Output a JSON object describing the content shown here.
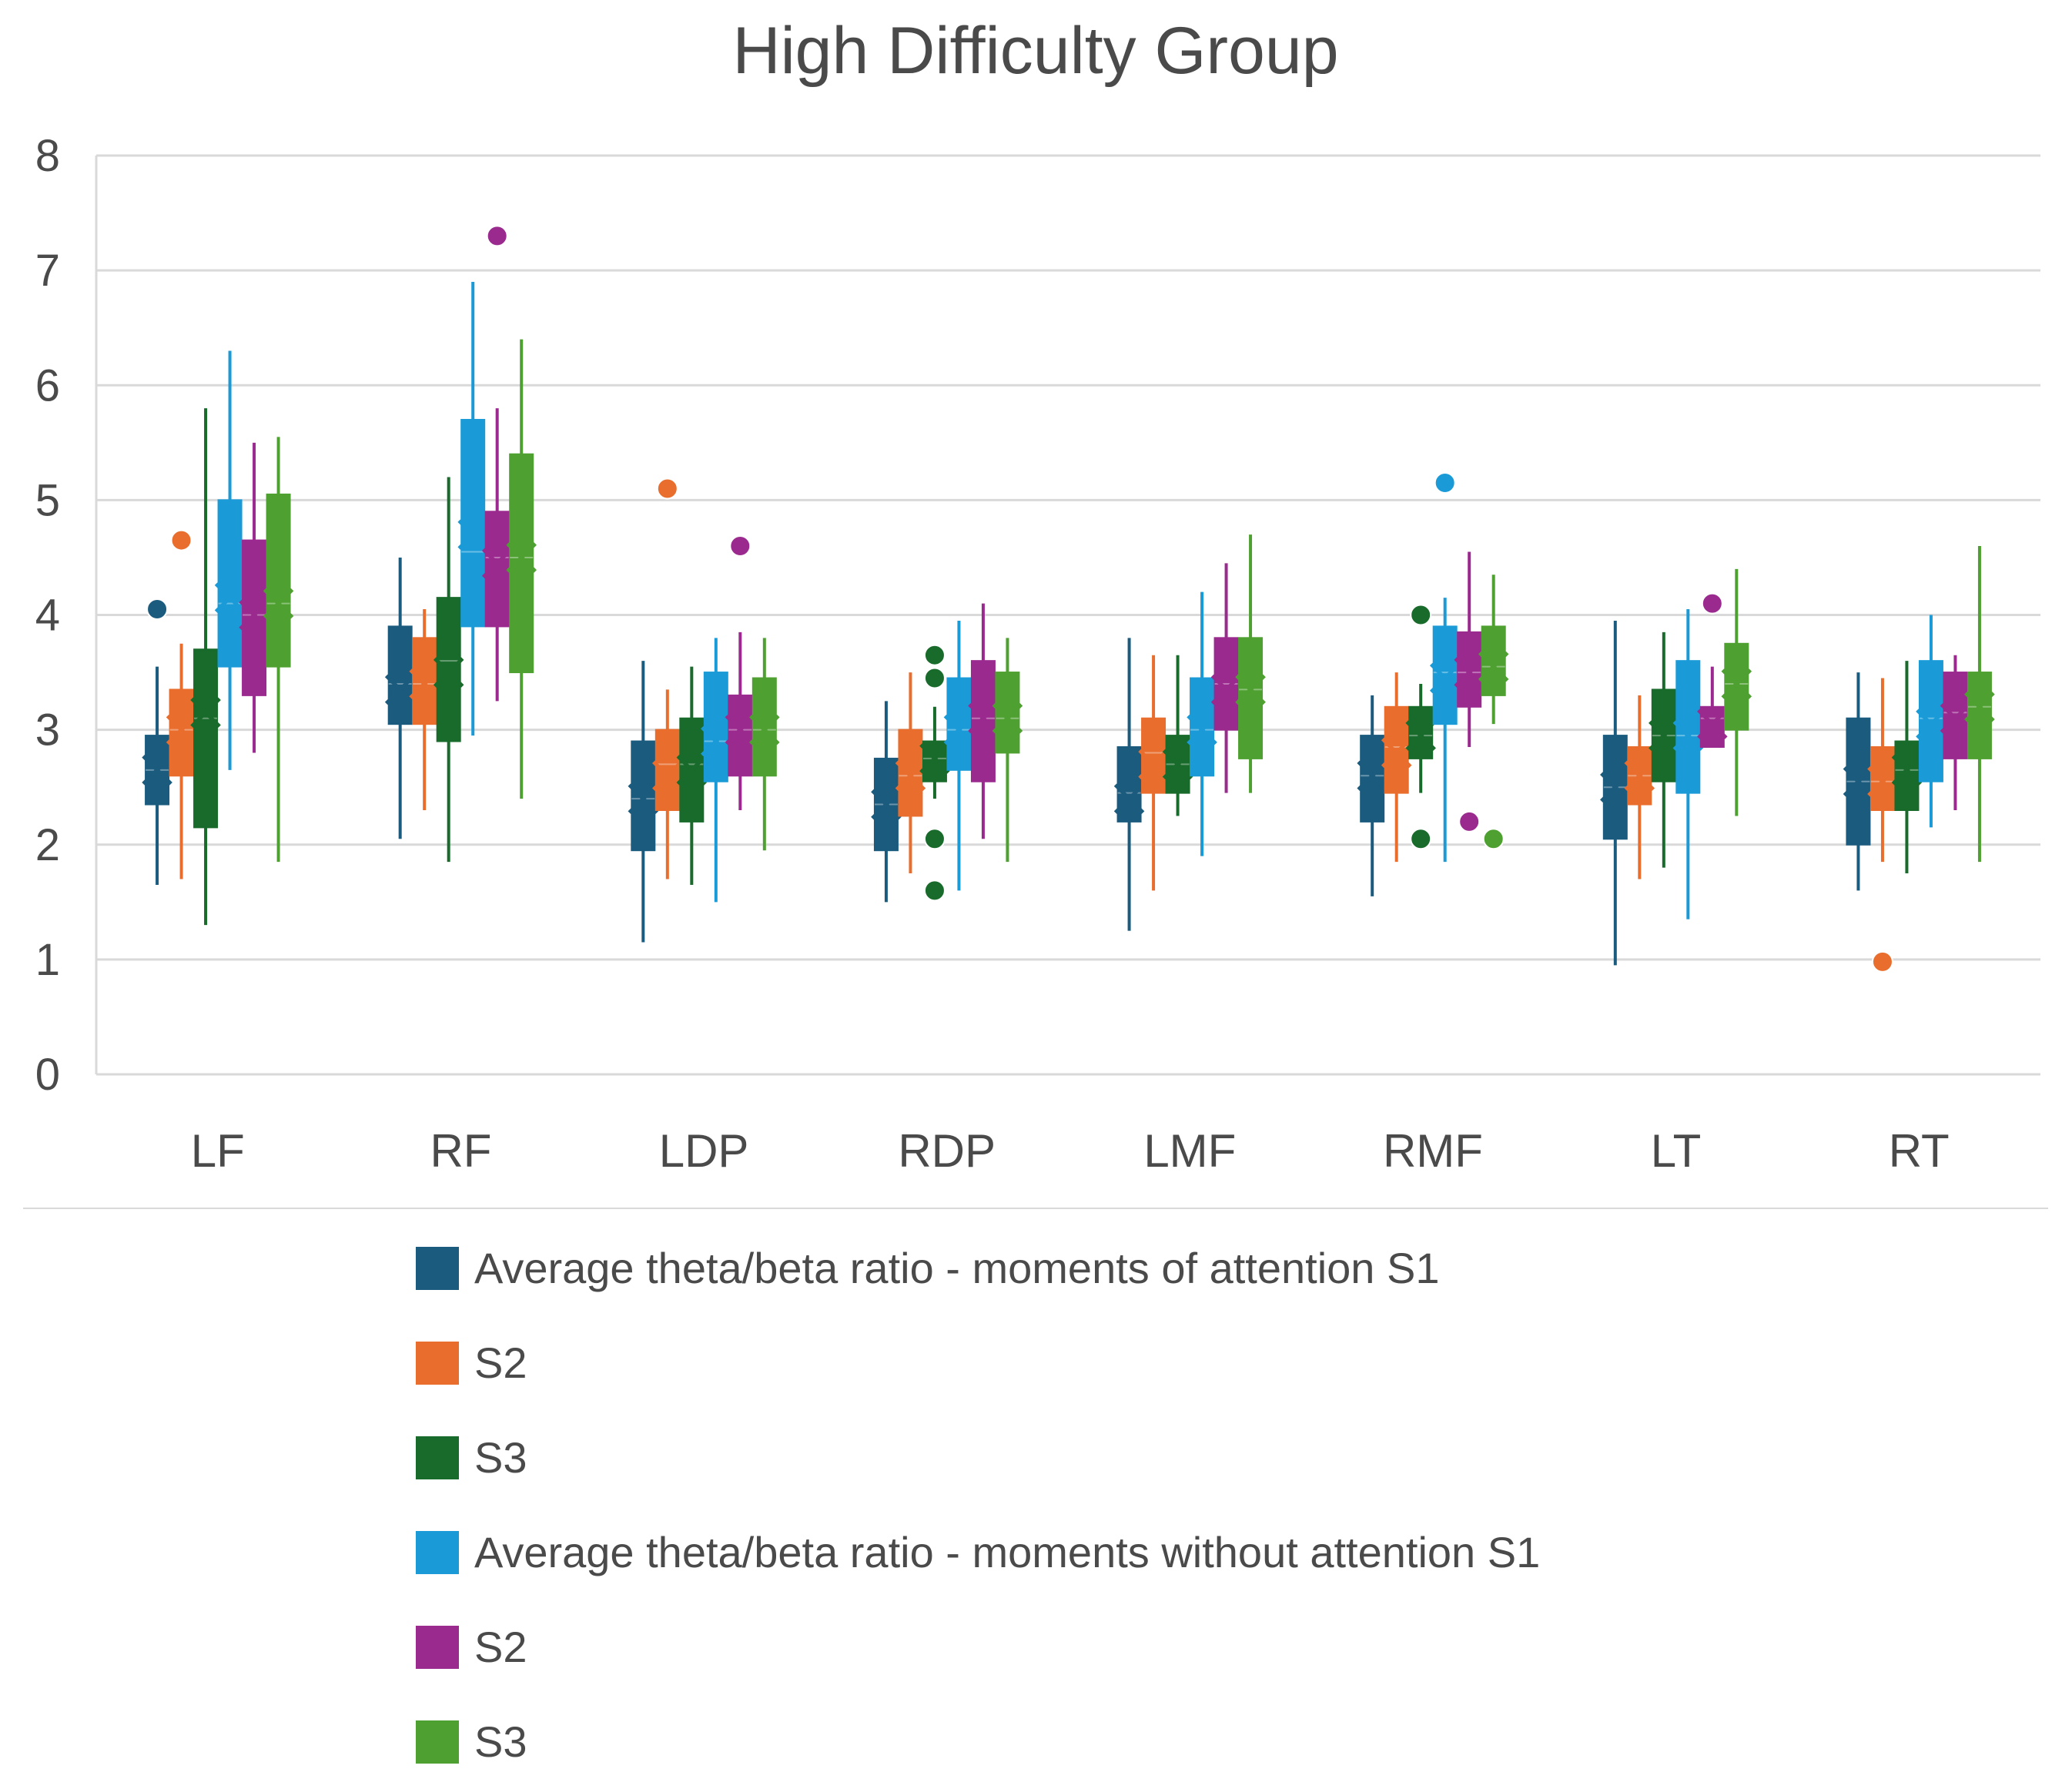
{
  "chart_data": {
    "type": "box",
    "title": "High Difficulty Group",
    "xlabel": "",
    "ylabel": "",
    "ylim": [
      0,
      8
    ],
    "yticks": [
      "0",
      "1",
      "2",
      "3",
      "4",
      "5",
      "6",
      "7",
      "8"
    ],
    "grid": true,
    "legend_position": "bottom",
    "categories": [
      "LF",
      "RF",
      "LDP",
      "RDP",
      "LMF",
      "RMF",
      "LT",
      "RT"
    ],
    "series": [
      {
        "name": "Average theta/beta ratio - moments of attention S1",
        "color": "#1b5b7e",
        "boxes": [
          {
            "min": 1.65,
            "q1": 2.35,
            "median": 2.65,
            "q3": 2.95,
            "max": 3.55,
            "mean": 2.65,
            "outliers": [
              4.05
            ]
          },
          {
            "min": 2.05,
            "q1": 3.05,
            "median": 3.4,
            "q3": 3.9,
            "max": 4.5,
            "mean": 3.35,
            "outliers": []
          },
          {
            "min": 1.15,
            "q1": 1.95,
            "median": 2.4,
            "q3": 2.9,
            "max": 3.6,
            "mean": 2.4,
            "outliers": []
          },
          {
            "min": 1.5,
            "q1": 1.95,
            "median": 2.35,
            "q3": 2.75,
            "max": 3.25,
            "mean": 2.35,
            "outliers": []
          },
          {
            "min": 1.25,
            "q1": 2.2,
            "median": 2.45,
            "q3": 2.85,
            "max": 3.8,
            "mean": 2.4,
            "outliers": []
          },
          {
            "min": 1.55,
            "q1": 2.2,
            "median": 2.6,
            "q3": 2.95,
            "max": 3.3,
            "mean": 2.6,
            "outliers": []
          },
          {
            "min": 0.95,
            "q1": 2.05,
            "median": 2.5,
            "q3": 2.95,
            "max": 3.95,
            "mean": 2.5,
            "outliers": []
          },
          {
            "min": 1.6,
            "q1": 2.0,
            "median": 2.55,
            "q3": 3.1,
            "max": 3.5,
            "mean": 2.55,
            "outliers": []
          }
        ]
      },
      {
        "name": "S2",
        "color": "#e96e2e",
        "boxes": [
          {
            "min": 1.7,
            "q1": 2.6,
            "median": 3.0,
            "q3": 3.35,
            "max": 3.75,
            "mean": 3.0,
            "outliers": [
              4.65
            ]
          },
          {
            "min": 2.3,
            "q1": 3.05,
            "median": 3.4,
            "q3": 3.8,
            "max": 4.05,
            "mean": 3.4,
            "outliers": []
          },
          {
            "min": 1.7,
            "q1": 2.3,
            "median": 2.7,
            "q3": 3.0,
            "max": 3.35,
            "mean": 2.6,
            "outliers": [
              5.1
            ]
          },
          {
            "min": 1.75,
            "q1": 2.25,
            "median": 2.6,
            "q3": 3.0,
            "max": 3.5,
            "mean": 2.6,
            "outliers": []
          },
          {
            "min": 1.6,
            "q1": 2.45,
            "median": 2.8,
            "q3": 3.1,
            "max": 3.65,
            "mean": 2.7,
            "outliers": []
          },
          {
            "min": 1.85,
            "q1": 2.45,
            "median": 2.85,
            "q3": 3.2,
            "max": 3.5,
            "mean": 2.8,
            "outliers": []
          },
          {
            "min": 1.7,
            "q1": 2.35,
            "median": 2.6,
            "q3": 2.85,
            "max": 3.3,
            "mean": 2.6,
            "outliers": []
          },
          {
            "min": 1.85,
            "q1": 2.3,
            "median": 2.55,
            "q3": 2.85,
            "max": 3.45,
            "mean": 2.55,
            "outliers": [
              0.98
            ]
          }
        ]
      },
      {
        "name": "S3",
        "color": "#196b2b",
        "boxes": [
          {
            "min": 1.3,
            "q1": 2.15,
            "median": 3.1,
            "q3": 3.7,
            "max": 5.8,
            "mean": 3.15,
            "outliers": []
          },
          {
            "min": 1.85,
            "q1": 2.9,
            "median": 3.6,
            "q3": 4.15,
            "max": 5.2,
            "mean": 3.5,
            "outliers": []
          },
          {
            "min": 1.65,
            "q1": 2.2,
            "median": 2.7,
            "q3": 3.1,
            "max": 3.55,
            "mean": 2.65,
            "outliers": []
          },
          {
            "min": 2.4,
            "q1": 2.55,
            "median": 2.75,
            "q3": 2.9,
            "max": 3.2,
            "mean": 2.75,
            "outliers": [
              3.65,
              3.45,
              2.05,
              1.6
            ]
          },
          {
            "min": 2.25,
            "q1": 2.45,
            "median": 2.7,
            "q3": 2.95,
            "max": 3.65,
            "mean": 2.7,
            "outliers": []
          },
          {
            "min": 2.45,
            "q1": 2.75,
            "median": 2.95,
            "q3": 3.2,
            "max": 3.4,
            "mean": 2.95,
            "outliers": [
              4.0,
              2.05
            ]
          },
          {
            "min": 1.8,
            "q1": 2.55,
            "median": 2.95,
            "q3": 3.35,
            "max": 3.85,
            "mean": 2.95,
            "outliers": []
          },
          {
            "min": 1.75,
            "q1": 2.3,
            "median": 2.65,
            "q3": 2.9,
            "max": 3.6,
            "mean": 2.65,
            "outliers": []
          }
        ]
      },
      {
        "name": "Average theta/beta ratio - moments without attention S1",
        "color": "#1a9bd7",
        "boxes": [
          {
            "min": 2.65,
            "q1": 3.55,
            "median": 4.1,
            "q3": 5.0,
            "max": 6.3,
            "mean": 4.15,
            "outliers": []
          },
          {
            "min": 2.95,
            "q1": 3.9,
            "median": 4.55,
            "q3": 5.7,
            "max": 6.9,
            "mean": 4.7,
            "outliers": []
          },
          {
            "min": 1.5,
            "q1": 2.55,
            "median": 2.9,
            "q3": 3.5,
            "max": 3.8,
            "mean": 2.9,
            "outliers": []
          },
          {
            "min": 1.6,
            "q1": 2.65,
            "median": 3.0,
            "q3": 3.45,
            "max": 3.95,
            "mean": 3.0,
            "outliers": []
          },
          {
            "min": 1.9,
            "q1": 2.6,
            "median": 3.0,
            "q3": 3.45,
            "max": 4.2,
            "mean": 3.0,
            "outliers": []
          },
          {
            "min": 1.85,
            "q1": 3.05,
            "median": 3.5,
            "q3": 3.9,
            "max": 4.15,
            "mean": 3.45,
            "outliers": [
              5.15
            ]
          },
          {
            "min": 1.35,
            "q1": 2.45,
            "median": 2.95,
            "q3": 3.6,
            "max": 4.05,
            "mean": 2.95,
            "outliers": []
          },
          {
            "min": 2.15,
            "q1": 2.55,
            "median": 3.1,
            "q3": 3.6,
            "max": 4.0,
            "mean": 3.05,
            "outliers": []
          }
        ]
      },
      {
        "name": "S2",
        "color": "#9b2a8f",
        "boxes": [
          {
            "min": 2.8,
            "q1": 3.3,
            "median": 4.0,
            "q3": 4.65,
            "max": 5.5,
            "mean": 4.0,
            "outliers": []
          },
          {
            "min": 3.25,
            "q1": 3.9,
            "median": 4.5,
            "q3": 4.9,
            "max": 5.8,
            "mean": 4.45,
            "outliers": [
              7.3
            ]
          },
          {
            "min": 2.3,
            "q1": 2.6,
            "median": 3.0,
            "q3": 3.3,
            "max": 3.85,
            "mean": 3.0,
            "outliers": [
              4.6
            ]
          },
          {
            "min": 2.05,
            "q1": 2.55,
            "median": 3.1,
            "q3": 3.6,
            "max": 4.1,
            "mean": 3.1,
            "outliers": []
          },
          {
            "min": 2.45,
            "q1": 3.0,
            "median": 3.4,
            "q3": 3.8,
            "max": 4.45,
            "mean": 3.35,
            "outliers": []
          },
          {
            "min": 2.85,
            "q1": 3.2,
            "median": 3.5,
            "q3": 3.85,
            "max": 4.55,
            "mean": 3.5,
            "outliers": [
              2.2
            ]
          },
          {
            "min": 2.85,
            "q1": 2.85,
            "median": 3.1,
            "q3": 3.2,
            "max": 3.55,
            "mean": 3.05,
            "outliers": [
              4.1
            ]
          },
          {
            "min": 2.3,
            "q1": 2.75,
            "median": 3.15,
            "q3": 3.5,
            "max": 3.65,
            "mean": 3.1,
            "outliers": []
          }
        ]
      },
      {
        "name": "S3",
        "color": "#4ea030",
        "boxes": [
          {
            "min": 1.85,
            "q1": 3.55,
            "median": 4.1,
            "q3": 5.05,
            "max": 5.55,
            "mean": 4.1,
            "outliers": []
          },
          {
            "min": 2.4,
            "q1": 3.5,
            "median": 4.5,
            "q3": 5.4,
            "max": 6.4,
            "mean": 4.5,
            "outliers": []
          },
          {
            "min": 1.95,
            "q1": 2.6,
            "median": 3.0,
            "q3": 3.45,
            "max": 3.8,
            "mean": 3.0,
            "outliers": []
          },
          {
            "min": 1.85,
            "q1": 2.8,
            "median": 3.1,
            "q3": 3.5,
            "max": 3.8,
            "mean": 3.1,
            "outliers": []
          },
          {
            "min": 2.45,
            "q1": 2.75,
            "median": 3.35,
            "q3": 3.8,
            "max": 4.7,
            "mean": 3.35,
            "outliers": []
          },
          {
            "min": 3.05,
            "q1": 3.3,
            "median": 3.55,
            "q3": 3.9,
            "max": 4.35,
            "mean": 3.55,
            "outliers": [
              2.05
            ]
          },
          {
            "min": 2.25,
            "q1": 3.0,
            "median": 3.4,
            "q3": 3.75,
            "max": 4.4,
            "mean": 3.4,
            "outliers": []
          },
          {
            "min": 1.85,
            "q1": 2.75,
            "median": 3.2,
            "q3": 3.5,
            "max": 4.6,
            "mean": 3.2,
            "outliers": []
          }
        ]
      }
    ]
  }
}
